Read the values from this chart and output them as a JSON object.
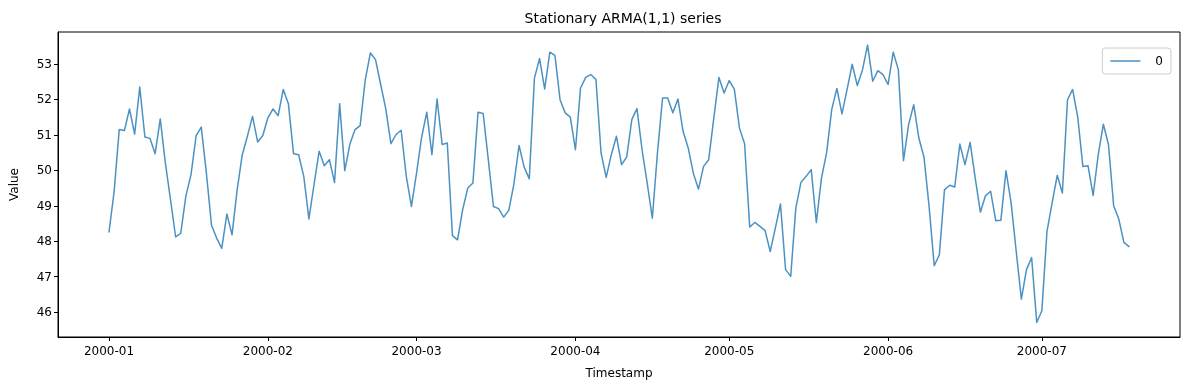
{
  "chart_data": {
    "type": "line",
    "title": "Stationary ARMA(1,1) series",
    "xlabel": "Timestamp",
    "ylabel": "Value",
    "x": [
      "2000-01-01",
      "2000-01-02",
      "2000-01-03",
      "2000-01-04",
      "2000-01-05",
      "2000-01-06",
      "2000-01-07",
      "2000-01-08",
      "2000-01-09",
      "2000-01-10",
      "2000-01-11",
      "2000-01-12",
      "2000-01-13",
      "2000-01-14",
      "2000-01-15",
      "2000-01-16",
      "2000-01-17",
      "2000-01-18",
      "2000-01-19",
      "2000-01-20",
      "2000-01-21",
      "2000-01-22",
      "2000-01-23",
      "2000-01-24",
      "2000-01-25",
      "2000-01-26",
      "2000-01-27",
      "2000-01-28",
      "2000-01-29",
      "2000-01-30",
      "2000-01-31",
      "2000-02-01",
      "2000-02-02",
      "2000-02-03",
      "2000-02-04",
      "2000-02-05",
      "2000-02-06",
      "2000-02-07",
      "2000-02-08",
      "2000-02-09",
      "2000-02-10",
      "2000-02-11",
      "2000-02-12",
      "2000-02-13",
      "2000-02-14",
      "2000-02-15",
      "2000-02-16",
      "2000-02-17",
      "2000-02-18",
      "2000-02-19",
      "2000-02-20",
      "2000-02-21",
      "2000-02-22",
      "2000-02-23",
      "2000-02-24",
      "2000-02-25",
      "2000-02-26",
      "2000-02-27",
      "2000-02-28",
      "2000-02-29",
      "2000-03-01",
      "2000-03-02",
      "2000-03-03",
      "2000-03-04",
      "2000-03-05",
      "2000-03-06",
      "2000-03-07",
      "2000-03-08",
      "2000-03-09",
      "2000-03-10",
      "2000-03-11",
      "2000-03-12",
      "2000-03-13",
      "2000-03-14",
      "2000-03-15",
      "2000-03-16",
      "2000-03-17",
      "2000-03-18",
      "2000-03-19",
      "2000-03-20",
      "2000-03-21",
      "2000-03-22",
      "2000-03-23",
      "2000-03-24",
      "2000-03-25",
      "2000-03-26",
      "2000-03-27",
      "2000-03-28",
      "2000-03-29",
      "2000-03-30",
      "2000-03-31",
      "2000-04-01",
      "2000-04-02",
      "2000-04-03",
      "2000-04-04",
      "2000-04-05",
      "2000-04-06",
      "2000-04-07",
      "2000-04-08",
      "2000-04-09",
      "2000-04-10",
      "2000-04-11",
      "2000-04-12",
      "2000-04-13",
      "2000-04-14",
      "2000-04-15",
      "2000-04-16",
      "2000-04-17",
      "2000-04-18",
      "2000-04-19",
      "2000-04-20",
      "2000-04-21",
      "2000-04-22",
      "2000-04-23",
      "2000-04-24",
      "2000-04-25",
      "2000-04-26",
      "2000-04-27",
      "2000-04-28",
      "2000-04-29",
      "2000-04-30",
      "2000-05-01",
      "2000-05-02",
      "2000-05-03",
      "2000-05-04",
      "2000-05-05",
      "2000-05-06",
      "2000-05-07",
      "2000-05-08",
      "2000-05-09",
      "2000-05-10",
      "2000-05-11",
      "2000-05-12",
      "2000-05-13",
      "2000-05-14",
      "2000-05-15",
      "2000-05-16",
      "2000-05-17",
      "2000-05-18",
      "2000-05-19",
      "2000-05-20",
      "2000-05-21",
      "2000-05-22",
      "2000-05-23",
      "2000-05-24",
      "2000-05-25",
      "2000-05-26",
      "2000-05-27",
      "2000-05-28",
      "2000-05-29",
      "2000-05-30",
      "2000-05-31",
      "2000-06-01",
      "2000-06-02",
      "2000-06-03",
      "2000-06-04",
      "2000-06-05",
      "2000-06-06",
      "2000-06-07",
      "2000-06-08",
      "2000-06-09",
      "2000-06-10",
      "2000-06-11",
      "2000-06-12",
      "2000-06-13",
      "2000-06-14",
      "2000-06-15",
      "2000-06-16",
      "2000-06-17",
      "2000-06-18",
      "2000-06-19",
      "2000-06-20",
      "2000-06-21",
      "2000-06-22",
      "2000-06-23",
      "2000-06-24",
      "2000-06-25",
      "2000-06-26",
      "2000-06-27",
      "2000-06-28",
      "2000-06-29",
      "2000-06-30",
      "2000-07-01",
      "2000-07-02",
      "2000-07-03",
      "2000-07-04",
      "2000-07-05",
      "2000-07-06",
      "2000-07-07",
      "2000-07-08",
      "2000-07-09",
      "2000-07-10",
      "2000-07-11",
      "2000-07-12",
      "2000-07-13",
      "2000-07-14",
      "2000-07-15",
      "2000-07-16",
      "2000-07-17",
      "2000-07-18"
    ],
    "series": [
      {
        "name": "0",
        "color": "#4b92c3",
        "values": [
          48.26,
          49.4,
          51.15,
          51.12,
          51.73,
          51.02,
          52.35,
          50.94,
          50.9,
          50.47,
          51.45,
          50.2,
          49.17,
          48.12,
          48.23,
          49.28,
          49.88,
          50.98,
          51.22,
          49.92,
          48.45,
          48.09,
          47.8,
          48.77,
          48.18,
          49.45,
          50.44,
          50.96,
          51.52,
          50.8,
          50.98,
          51.48,
          51.73,
          51.54,
          52.28,
          51.88,
          50.47,
          50.44,
          49.83,
          48.63,
          49.6,
          50.54,
          50.13,
          50.3,
          49.66,
          51.88,
          49.99,
          50.74,
          51.15,
          51.26,
          52.56,
          53.31,
          53.12,
          52.42,
          51.73,
          50.75,
          51.01,
          51.13,
          49.83,
          48.98,
          49.92,
          50.94,
          51.64,
          50.44,
          52.01,
          50.73,
          50.77,
          48.16,
          48.04,
          48.89,
          49.5,
          49.64,
          51.64,
          51.6,
          50.3,
          48.98,
          48.92,
          48.68,
          48.87,
          49.62,
          50.7,
          50.09,
          49.76,
          52.6,
          53.15,
          52.29,
          53.33,
          53.24,
          51.99,
          51.62,
          51.5,
          50.58,
          52.32,
          52.62,
          52.7,
          52.56,
          50.49,
          49.8,
          50.44,
          50.96,
          50.16,
          50.37,
          51.43,
          51.74,
          50.58,
          49.64,
          48.65,
          50.49,
          52.04,
          52.04,
          51.62,
          52.01,
          51.1,
          50.63,
          49.92,
          49.47,
          50.11,
          50.3,
          51.48,
          52.62,
          52.18,
          52.53,
          52.29,
          51.19,
          50.75,
          48.4,
          48.53,
          48.42,
          48.3,
          47.71,
          48.37,
          49.05,
          47.2,
          47.01,
          48.94,
          49.66,
          49.83,
          50.02,
          48.53,
          49.78,
          50.49,
          51.71,
          52.31,
          51.59,
          52.28,
          52.99,
          52.39,
          52.83,
          53.53,
          52.51,
          52.81,
          52.7,
          52.42,
          53.33,
          52.84,
          50.27,
          51.29,
          51.85,
          50.91,
          50.37,
          48.98,
          47.31,
          47.62,
          49.45,
          49.58,
          49.53,
          50.74,
          50.16,
          50.79,
          49.78,
          48.82,
          49.28,
          49.41,
          48.58,
          48.59,
          49.99,
          49.08,
          47.71,
          46.37,
          47.2,
          47.54,
          45.71,
          46.04,
          48.28,
          49.08,
          49.86,
          49.36,
          51.99,
          52.28,
          51.5,
          50.11,
          50.13,
          49.29,
          50.44,
          51.3,
          50.72,
          49.01,
          48.63,
          47.97,
          47.85
        ]
      }
    ],
    "xlim": [
      "1999-12-22T01:12",
      "2000-07-27T22:48"
    ],
    "xticks": [
      "2000-01",
      "2000-02",
      "2000-03",
      "2000-04",
      "2000-05",
      "2000-06",
      "2000-07"
    ],
    "ylim": [
      45.3,
      53.9
    ],
    "yticks": [
      46,
      47,
      48,
      49,
      50,
      51,
      52,
      53
    ],
    "grid": false,
    "legend": "top right",
    "line_style": "solid",
    "marker": "none"
  }
}
